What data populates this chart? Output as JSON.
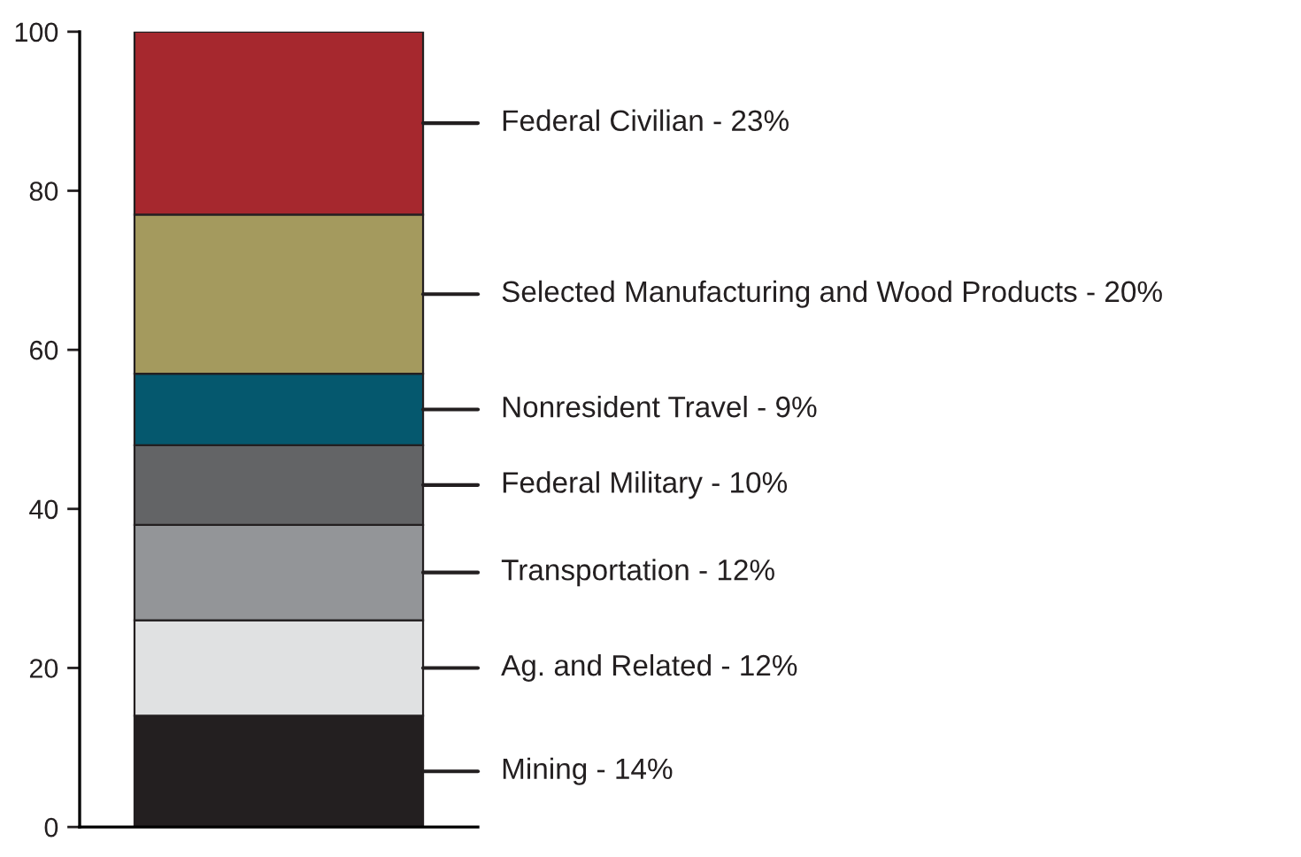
{
  "chart_data": {
    "type": "bar",
    "stacked": true,
    "categories": [
      null
    ],
    "series": [
      {
        "name": "Mining - 14%",
        "color": "#231f20",
        "values": [
          14
        ]
      },
      {
        "name": "Ag. and Related - 12%",
        "color": "#e0e1e2",
        "values": [
          12
        ]
      },
      {
        "name": "Transportation - 12%",
        "color": "#939598",
        "values": [
          12
        ]
      },
      {
        "name": "Federal Military - 10%",
        "color": "#636466",
        "values": [
          10
        ]
      },
      {
        "name": "Nonresident Travel - 9%",
        "color": "#05586e",
        "values": [
          9
        ]
      },
      {
        "name": "Selected Manufacturing and Wood Products - 20%",
        "color": "#a49a5e",
        "values": [
          20
        ]
      },
      {
        "name": "Federal Civilian - 23%",
        "color": "#a6282e",
        "values": [
          23
        ]
      }
    ],
    "ylim": [
      0,
      100
    ],
    "yticks": [
      0,
      20,
      40,
      60,
      80,
      100
    ],
    "grid": false,
    "legend": "right"
  }
}
